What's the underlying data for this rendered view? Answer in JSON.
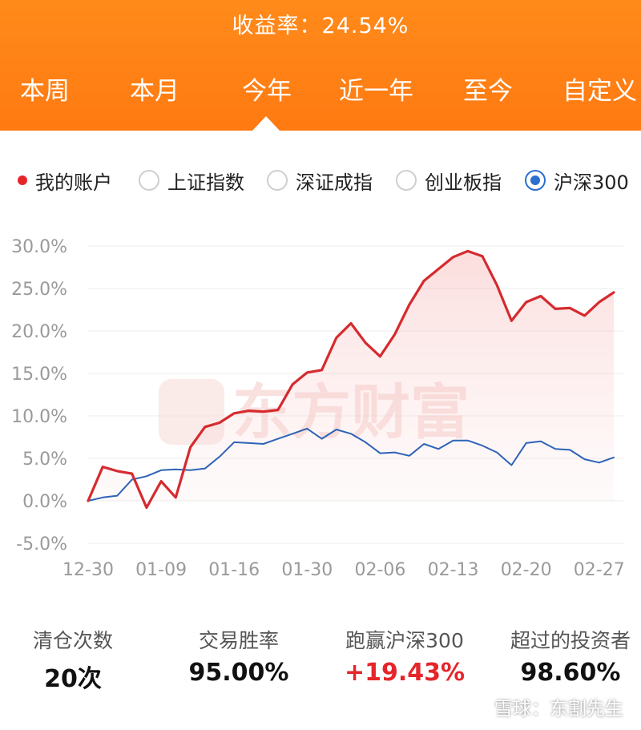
{
  "header": {
    "return_text": "收益率：24.54%",
    "tabs": [
      {
        "label": "本周"
      },
      {
        "label": "本月"
      },
      {
        "label": "今年",
        "active": true
      },
      {
        "label": "近一年"
      },
      {
        "label": "至今"
      },
      {
        "label": "自定义"
      }
    ]
  },
  "legend": {
    "items": [
      {
        "label": "我的账户",
        "style": "dot",
        "color": "#e4262b"
      },
      {
        "label": "上证指数",
        "style": "radio-off"
      },
      {
        "label": "深证成指",
        "style": "radio-off"
      },
      {
        "label": "创业板指",
        "style": "radio-off"
      },
      {
        "label": "沪深300",
        "style": "radio-on",
        "color": "#2b6fd0"
      }
    ]
  },
  "chart_data": {
    "type": "line",
    "watermark": "东方财富",
    "ylim": [
      -5,
      30
    ],
    "yticks": [
      30,
      25,
      20,
      15,
      10,
      5,
      0,
      -5
    ],
    "ytick_labels": [
      "30.0%",
      "25.0%",
      "20.0%",
      "15.0%",
      "10.0%",
      "5.0%",
      "0.0%",
      "-5.0%"
    ],
    "xticks": [
      {
        "label": "12-30",
        "i": 0
      },
      {
        "label": "01-09",
        "i": 5
      },
      {
        "label": "01-16",
        "i": 10
      },
      {
        "label": "01-30",
        "i": 15
      },
      {
        "label": "02-06",
        "i": 20
      },
      {
        "label": "02-13",
        "i": 25
      },
      {
        "label": "02-20",
        "i": 30
      },
      {
        "label": "02-27",
        "i": 35
      }
    ],
    "series": [
      {
        "name": "我的账户",
        "color": "#d62a2e",
        "values": [
          0.0,
          4.0,
          3.5,
          3.2,
          -0.8,
          2.3,
          0.4,
          6.3,
          8.7,
          9.2,
          10.3,
          10.6,
          10.5,
          10.7,
          13.7,
          15.1,
          15.4,
          19.2,
          20.9,
          18.6,
          17.0,
          19.6,
          23.1,
          25.9,
          27.3,
          28.7,
          29.4,
          28.8,
          25.4,
          21.2,
          23.4,
          24.1,
          22.6,
          22.7,
          21.8,
          23.4,
          24.54
        ]
      },
      {
        "name": "沪深300",
        "color": "#2d63b8",
        "values": [
          0.0,
          0.4,
          0.6,
          2.5,
          2.9,
          3.6,
          3.7,
          3.6,
          3.8,
          5.2,
          6.9,
          6.8,
          6.7,
          7.3,
          7.9,
          8.5,
          7.3,
          8.4,
          7.9,
          6.9,
          5.6,
          5.7,
          5.3,
          6.7,
          6.1,
          7.1,
          7.1,
          6.5,
          5.7,
          4.2,
          6.8,
          7.0,
          6.1,
          6.0,
          4.9,
          4.5,
          5.1
        ]
      }
    ]
  },
  "stats": [
    {
      "label": "清仓次数",
      "value": "20次",
      "color": "#111111"
    },
    {
      "label": "交易胜率",
      "value": "95.00%",
      "color": "#111111"
    },
    {
      "label": "跑赢沪深300",
      "value": "+19.43%",
      "color": "#e4262b"
    },
    {
      "label": "超过的投资者",
      "value": "98.60%",
      "color": "#111111"
    }
  ],
  "footer": {
    "text": "雪球：东割先生"
  }
}
